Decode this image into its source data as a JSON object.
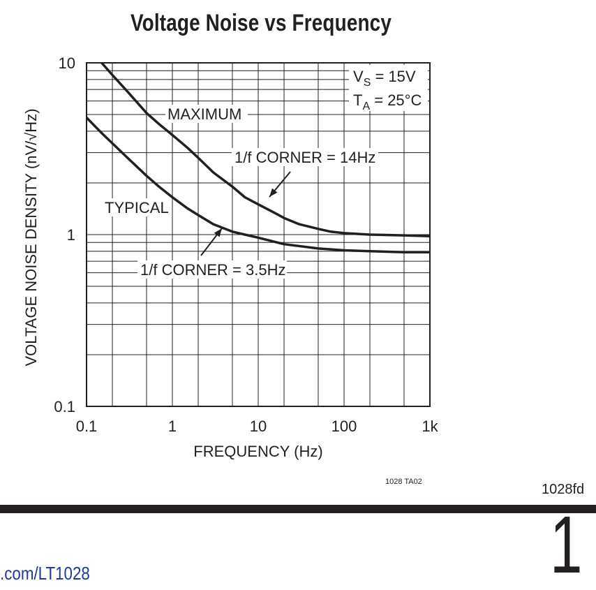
{
  "chart_data": {
    "type": "line",
    "title": "Voltage Noise vs Frequency",
    "xlabel": "FREQUENCY (Hz)",
    "ylabel": "VOLTAGE NOISE DENSITY (nV/√Hz)",
    "xscale": "log",
    "yscale": "log",
    "xlim": [
      0.1,
      1000
    ],
    "ylim": [
      0.1,
      10
    ],
    "xticks": [
      {
        "value": 0.1,
        "label": "0.1"
      },
      {
        "value": 1,
        "label": "1"
      },
      {
        "value": 10,
        "label": "10"
      },
      {
        "value": 100,
        "label": "100"
      },
      {
        "value": 1000,
        "label": "1k"
      }
    ],
    "yticks": [
      {
        "value": 0.1,
        "label": "0.1"
      },
      {
        "value": 1,
        "label": "1"
      },
      {
        "value": 10,
        "label": "10"
      }
    ],
    "grid": true,
    "series": [
      {
        "name": "MAXIMUM",
        "x": [
          0.15,
          0.2,
          0.3,
          0.5,
          0.7,
          1,
          1.5,
          2,
          3,
          5,
          7,
          10,
          15,
          20,
          30,
          50,
          70,
          100,
          200,
          500,
          1000
        ],
        "y": [
          10,
          8.5,
          6.8,
          5.1,
          4.4,
          3.8,
          3.2,
          2.8,
          2.3,
          1.9,
          1.65,
          1.5,
          1.35,
          1.25,
          1.15,
          1.08,
          1.04,
          1.02,
          1.0,
          0.99,
          0.98
        ]
      },
      {
        "name": "TYPICAL",
        "x": [
          0.1,
          0.15,
          0.2,
          0.3,
          0.5,
          0.7,
          1,
          1.5,
          2,
          3,
          5,
          7,
          10,
          20,
          50,
          100,
          200,
          500,
          1000
        ],
        "y": [
          4.8,
          3.9,
          3.4,
          2.8,
          2.2,
          1.9,
          1.65,
          1.42,
          1.3,
          1.15,
          1.04,
          1.0,
          0.96,
          0.88,
          0.83,
          0.81,
          0.8,
          0.79,
          0.79
        ]
      }
    ],
    "annotations": {
      "conditions": {
        "vs_main": "V",
        "vs_sub": "S",
        "vs_value": " = 15V",
        "ta_main": "T",
        "ta_sub": "A",
        "ta_value": " = 25°C"
      },
      "maximum_label": "MAXIMUM",
      "typical_label": "TYPICAL",
      "corner_max": "1/f CORNER = 14Hz",
      "corner_typ": "1/f CORNER = 3.5Hz"
    }
  },
  "figure_ref": "1028 TA02",
  "doc_id": "1028fd",
  "page_number": "1",
  "footer_link": ".com/LT1028",
  "colors": {
    "ink": "#231f20",
    "link": "#1b3c9a"
  }
}
